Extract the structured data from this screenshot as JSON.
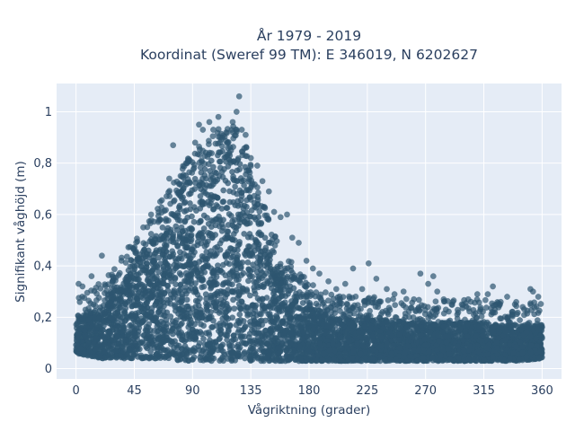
{
  "chart_data": {
    "type": "scatter",
    "title_line1": "År 1979 - 2019",
    "title_line2": "Koordinat (Sweref 99 TM): E 346019, N 6202627",
    "xlabel": "Vågriktning (grader)",
    "ylabel": "Signifikant våghöjd (m)",
    "xlim": [
      -15,
      375
    ],
    "ylim": [
      -0.04,
      1.11
    ],
    "x_ticks": [
      0,
      45,
      90,
      135,
      180,
      225,
      270,
      315,
      360
    ],
    "y_ticks": [
      0,
      0.2,
      0.4,
      0.6,
      0.8,
      1
    ],
    "y_tick_labels": [
      "0",
      "0,2",
      "0,4",
      "0,6",
      "0,8",
      "1"
    ],
    "grid": true,
    "plot_background": "#e5ecf6",
    "marker_color": "#2e5570",
    "series": [
      {
        "envelope_direction": [
          0,
          10,
          20,
          30,
          40,
          50,
          60,
          70,
          80,
          90,
          100,
          110,
          120,
          130,
          140,
          150,
          160,
          170,
          180,
          190,
          200,
          220,
          240,
          260,
          280,
          300,
          320,
          340,
          360
        ],
        "envelope_lower": [
          0.06,
          0.05,
          0.04,
          0.04,
          0.04,
          0.04,
          0.04,
          0.04,
          0.03,
          0.03,
          0.03,
          0.03,
          0.03,
          0.03,
          0.03,
          0.03,
          0.03,
          0.03,
          0.03,
          0.03,
          0.03,
          0.03,
          0.03,
          0.03,
          0.03,
          0.03,
          0.03,
          0.03,
          0.04
        ],
        "envelope_upper": [
          0.2,
          0.21,
          0.25,
          0.31,
          0.38,
          0.45,
          0.52,
          0.6,
          0.69,
          0.75,
          0.8,
          0.85,
          0.87,
          0.8,
          0.62,
          0.48,
          0.38,
          0.3,
          0.25,
          0.22,
          0.2,
          0.19,
          0.19,
          0.18,
          0.18,
          0.18,
          0.18,
          0.17,
          0.17
        ],
        "outliers": [
          [
            2,
            0.33
          ],
          [
            5,
            0.32
          ],
          [
            12,
            0.36
          ],
          [
            20,
            0.44
          ],
          [
            28,
            0.34
          ],
          [
            35,
            0.42
          ],
          [
            44,
            0.47
          ],
          [
            52,
            0.55
          ],
          [
            58,
            0.6
          ],
          [
            65,
            0.65
          ],
          [
            72,
            0.74
          ],
          [
            75,
            0.87
          ],
          [
            80,
            0.72
          ],
          [
            85,
            0.8
          ],
          [
            88,
            0.81
          ],
          [
            92,
            0.88
          ],
          [
            95,
            0.95
          ],
          [
            98,
            0.93
          ],
          [
            103,
            0.96
          ],
          [
            106,
            0.93
          ],
          [
            110,
            0.98
          ],
          [
            113,
            0.9
          ],
          [
            116,
            0.92
          ],
          [
            121,
            0.96
          ],
          [
            124,
            1.0
          ],
          [
            126,
            1.06
          ],
          [
            128,
            0.93
          ],
          [
            131,
            0.91
          ],
          [
            135,
            0.82
          ],
          [
            140,
            0.79
          ],
          [
            144,
            0.73
          ],
          [
            149,
            0.69
          ],
          [
            153,
            0.61
          ],
          [
            158,
            0.59
          ],
          [
            163,
            0.6
          ],
          [
            167,
            0.51
          ],
          [
            172,
            0.49
          ],
          [
            178,
            0.42
          ],
          [
            183,
            0.39
          ],
          [
            188,
            0.37
          ],
          [
            195,
            0.34
          ],
          [
            201,
            0.31
          ],
          [
            208,
            0.33
          ],
          [
            214,
            0.39
          ],
          [
            221,
            0.31
          ],
          [
            226,
            0.41
          ],
          [
            232,
            0.35
          ],
          [
            240,
            0.31
          ],
          [
            246,
            0.29
          ],
          [
            253,
            0.3
          ],
          [
            261,
            0.27
          ],
          [
            266,
            0.37
          ],
          [
            272,
            0.33
          ],
          [
            276,
            0.36
          ],
          [
            279,
            0.3
          ],
          [
            284,
            0.27
          ],
          [
            291,
            0.26
          ],
          [
            298,
            0.25
          ],
          [
            303,
            0.27
          ],
          [
            310,
            0.29
          ],
          [
            318,
            0.29
          ],
          [
            322,
            0.32
          ],
          [
            328,
            0.26
          ],
          [
            333,
            0.28
          ],
          [
            339,
            0.25
          ],
          [
            345,
            0.24
          ],
          [
            351,
            0.31
          ],
          [
            353,
            0.3
          ],
          [
            357,
            0.28
          ]
        ]
      }
    ]
  }
}
